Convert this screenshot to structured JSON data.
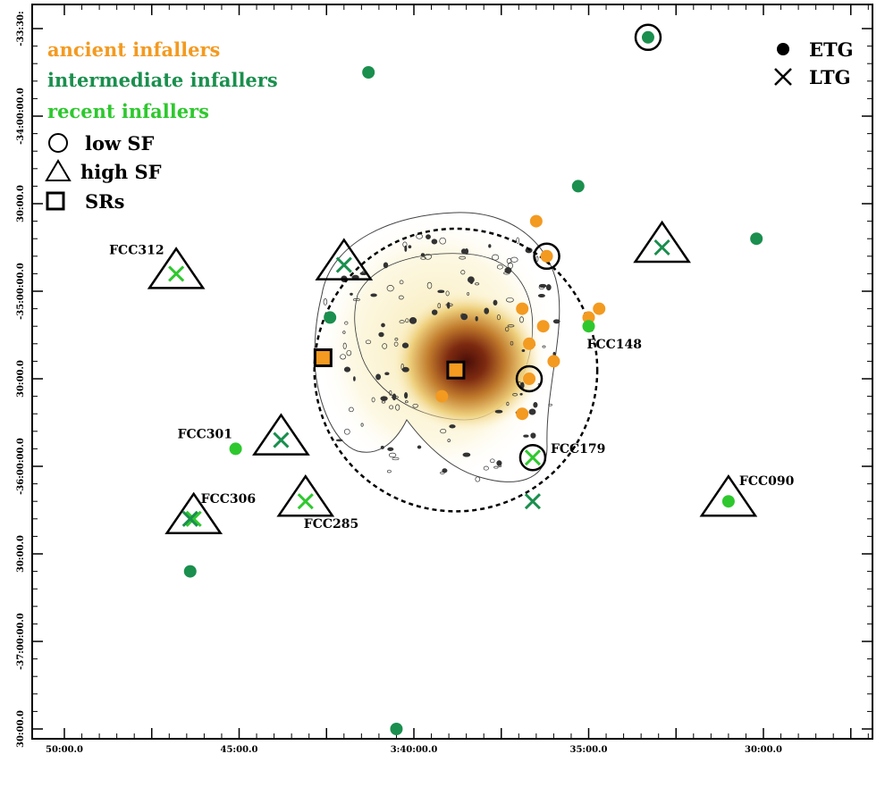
{
  "chart_data": {
    "type": "scatter",
    "title": "",
    "xlabel": "",
    "ylabel": "",
    "x_axis": {
      "ticks": [
        52.5,
        50,
        47.5,
        45,
        42.5,
        40,
        37.5,
        35,
        32.5,
        30,
        27.5
      ],
      "labels": [
        "",
        "50:00.0",
        "",
        "45:00.0",
        "",
        "3:40:00.0",
        "",
        "35:00.0",
        "",
        "30:00.0",
        ""
      ]
    },
    "y_axis": {
      "ticks": [
        -33.5,
        -34.0,
        -34.5,
        -35.0,
        -35.5,
        -36.0,
        -36.5,
        -37.0,
        -37.5
      ],
      "labels": [
        "-33:30:",
        "-34:00:00.0",
        "30:00.0",
        "-35:00:00.0",
        "30:00.0",
        "-36:00:00.0",
        "30:00.0",
        "-37:00:00.0",
        "30:00.0"
      ]
    },
    "colors": {
      "ancient": "#f39a21",
      "intermediate": "#1a8f4e",
      "recent": "#2ec82e"
    },
    "group_labels": {
      "ancient": "ancient infallers",
      "intermediate": "intermediate infallers",
      "recent": "recent infallers"
    },
    "legend": {
      "placement": "top-left / top-right",
      "etg": "ETG",
      "ltg": "LTG",
      "low_sf": "low SF",
      "high_sf": "high SF",
      "srs": "SRs"
    },
    "virial_circle": {
      "ra_center_min": 38.8,
      "dec_center_deg": -35.45,
      "radius_deg": 0.7
    },
    "galaxies": [
      {
        "ra": 33.3,
        "dec": -33.55,
        "group": "intermediate",
        "type": "ETG",
        "sf": "low",
        "label": ""
      },
      {
        "ra": 41.3,
        "dec": -33.75,
        "group": "intermediate",
        "type": "ETG",
        "sf": "",
        "label": ""
      },
      {
        "ra": 35.3,
        "dec": -34.4,
        "group": "intermediate",
        "type": "ETG",
        "sf": "",
        "label": ""
      },
      {
        "ra": 30.2,
        "dec": -34.7,
        "group": "intermediate",
        "type": "ETG",
        "sf": "",
        "label": ""
      },
      {
        "ra": 42.4,
        "dec": -35.15,
        "group": "intermediate",
        "type": "ETG",
        "sf": "",
        "label": ""
      },
      {
        "ra": 46.4,
        "dec": -36.6,
        "group": "intermediate",
        "type": "ETG",
        "sf": "",
        "label": ""
      },
      {
        "ra": 40.5,
        "dec": -37.5,
        "group": "intermediate",
        "type": "ETG",
        "sf": "",
        "label": ""
      },
      {
        "ra": 36.5,
        "dec": -34.6,
        "group": "ancient",
        "type": "ETG",
        "sf": "",
        "label": ""
      },
      {
        "ra": 36.2,
        "dec": -34.8,
        "group": "ancient",
        "type": "ETG",
        "sf": "low",
        "label": ""
      },
      {
        "ra": 36.9,
        "dec": -35.1,
        "group": "ancient",
        "type": "ETG",
        "sf": "",
        "label": ""
      },
      {
        "ra": 36.3,
        "dec": -35.2,
        "group": "ancient",
        "type": "ETG",
        "sf": "",
        "label": ""
      },
      {
        "ra": 36.7,
        "dec": -35.3,
        "group": "ancient",
        "type": "ETG",
        "sf": "",
        "label": ""
      },
      {
        "ra": 35.0,
        "dec": -35.15,
        "group": "ancient",
        "type": "ETG",
        "sf": "",
        "label": ""
      },
      {
        "ra": 34.7,
        "dec": -35.1,
        "group": "ancient",
        "type": "ETG",
        "sf": "",
        "label": ""
      },
      {
        "ra": 36.0,
        "dec": -35.4,
        "group": "ancient",
        "type": "ETG",
        "sf": "",
        "label": ""
      },
      {
        "ra": 36.7,
        "dec": -35.5,
        "group": "ancient",
        "type": "ETG",
        "sf": "low",
        "label": ""
      },
      {
        "ra": 39.2,
        "dec": -35.6,
        "group": "ancient",
        "type": "ETG",
        "sf": "",
        "label": ""
      },
      {
        "ra": 36.9,
        "dec": -35.7,
        "group": "ancient",
        "type": "ETG",
        "sf": "",
        "label": ""
      },
      {
        "ra": 38.8,
        "dec": -35.45,
        "group": "ancient",
        "type": "ETG",
        "sf": "SR",
        "label": ""
      },
      {
        "ra": 42.6,
        "dec": -35.38,
        "group": "ancient",
        "type": "ETG",
        "sf": "SR",
        "label": ""
      },
      {
        "ra": 35.0,
        "dec": -35.2,
        "group": "recent",
        "type": "ETG",
        "sf": "",
        "label": "FCC148"
      },
      {
        "ra": 45.1,
        "dec": -35.9,
        "group": "recent",
        "type": "ETG",
        "sf": "",
        "label": "FCC301"
      },
      {
        "ra": 31.0,
        "dec": -36.2,
        "group": "recent",
        "type": "ETG",
        "sf": "high",
        "label": "FCC090"
      },
      {
        "ra": 46.8,
        "dec": -34.9,
        "group": "recent",
        "type": "LTG",
        "sf": "high",
        "label": "FCC312"
      },
      {
        "ra": 36.6,
        "dec": -35.95,
        "group": "recent",
        "type": "LTG",
        "sf": "low",
        "label": "FCC179"
      },
      {
        "ra": 43.1,
        "dec": -36.2,
        "group": "recent",
        "type": "LTG",
        "sf": "high",
        "label": "FCC285"
      },
      {
        "ra": 46.3,
        "dec": -36.3,
        "group": "recent",
        "type": "LTG",
        "sf": "high",
        "label": "FCC306"
      },
      {
        "ra": 42.0,
        "dec": -34.85,
        "group": "intermediate",
        "type": "LTG",
        "sf": "high",
        "label": ""
      },
      {
        "ra": 32.9,
        "dec": -34.75,
        "group": "intermediate",
        "type": "LTG",
        "sf": "high",
        "label": ""
      },
      {
        "ra": 43.8,
        "dec": -35.85,
        "group": "intermediate",
        "type": "LTG",
        "sf": "high",
        "label": ""
      },
      {
        "ra": 36.6,
        "dec": -36.2,
        "group": "intermediate",
        "type": "LTG",
        "sf": "",
        "label": ""
      },
      {
        "ra": 46.4,
        "dec": -36.3,
        "group": "intermediate",
        "type": "LTG",
        "sf": "",
        "label": ""
      }
    ]
  }
}
